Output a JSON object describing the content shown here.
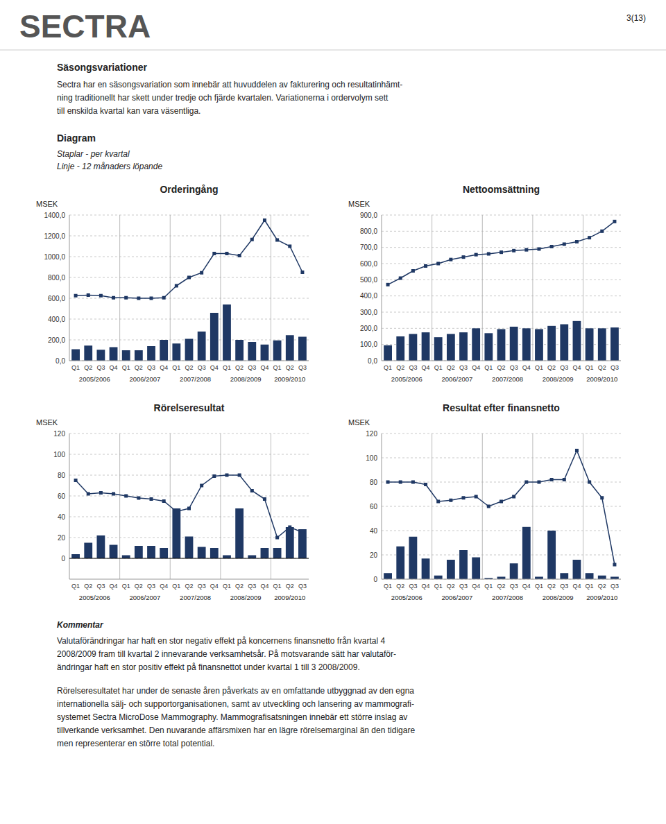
{
  "logo_text": "SECTRA",
  "page_header": "3(13)",
  "heading": "Säsongsvariationer",
  "intro": [
    "Sectra har en säsongsvariation som innebär att huvuddelen av fakturering och resultatinhämt-",
    "ning traditionellt har skett under tredje och fjärde kvartalen. Variationerna i ordervolym sett",
    "till enskilda kvartal kan vara väsentliga."
  ],
  "diagram_label": "Diagram",
  "diagram_notes": [
    "Staplar - per kvartal",
    "Linje - 12 månaders löpande"
  ],
  "comment_title": "Kommentar",
  "comment_text": [
    "Valutaförändringar har haft en stor negativ effekt på koncernens finansnetto från kvartal 4",
    "2008/2009 fram till kvartal 2 innevarande verksamhetsår. På motsvarande sätt har valutaför-",
    "ändringar haft en stor positiv effekt på finansnettot under kvartal 1 till 3 2008/2009."
  ],
  "extra_text": [
    "Rörelseresultatet har under de senaste åren påverkats av en omfattande utbyggnad av den egna",
    "internationella sälj- och supportorganisationen, samt av utveckling och lansering av mammografi-",
    "systemet Sectra MicroDose Mammography. Mammografisatsningen innebär ett större inslag av",
    "tillverkande verksamhet. Den nuvarande affärsmixen har en lägre rörelsemarginal än den tidigare",
    "men representerar en större total potential."
  ],
  "chart_data": [
    {
      "type": "bar",
      "title": "Orderingång",
      "ylabel": "MSEK",
      "categories": [
        "Q1",
        "Q2",
        "Q3",
        "Q4",
        "Q1",
        "Q2",
        "Q3",
        "Q4",
        "Q1",
        "Q2",
        "Q3",
        "Q4",
        "Q1",
        "Q2",
        "Q3",
        "Q4",
        "Q1",
        "Q2",
        "Q3"
      ],
      "annotations": [
        "2005/2006",
        "2006/2007",
        "2007/2008",
        "2008/2009",
        "2009/2010"
      ],
      "series": [
        {
          "type": "bar",
          "color": "#1F3864",
          "values": [
            110,
            145,
            105,
            130,
            100,
            100,
            140,
            200,
            165,
            210,
            280,
            460,
            540,
            200,
            180,
            155,
            195,
            245,
            230
          ]
        },
        {
          "type": "line",
          "color": "#1F3864",
          "marker": "square",
          "values": [
            625,
            630,
            625,
            605,
            605,
            600,
            600,
            605,
            720,
            800,
            845,
            1030,
            1030,
            1010,
            1165,
            1350,
            1160,
            1100,
            850
          ]
        }
      ],
      "ylim": [
        0,
        1400
      ],
      "yticks": [
        {
          "value": 0,
          "label": "0,0"
        },
        {
          "value": 200,
          "label": "200,0"
        },
        {
          "value": 400,
          "label": "400,0"
        },
        {
          "value": 600,
          "label": "600,0"
        },
        {
          "value": 800,
          "label": "800,0"
        },
        {
          "value": 1000,
          "label": "1000,0"
        },
        {
          "value": 1200,
          "label": "1200,0"
        },
        {
          "value": 1400,
          "label": "1400,0"
        }
      ],
      "grid": true
    },
    {
      "type": "bar",
      "title": "Nettoomsättning",
      "ylabel": "MSEK",
      "categories": [
        "Q1",
        "Q2",
        "Q3",
        "Q4",
        "Q1",
        "Q2",
        "Q3",
        "Q4",
        "Q1",
        "Q2",
        "Q3",
        "Q4",
        "Q1",
        "Q2",
        "Q3",
        "Q4",
        "Q1",
        "Q2",
        "Q3"
      ],
      "annotations": [
        "2005/2006",
        "2006/2007",
        "2007/2008",
        "2008/2009",
        "2009/2010"
      ],
      "series": [
        {
          "type": "bar",
          "color": "#1F3864",
          "values": [
            95,
            150,
            165,
            175,
            145,
            165,
            175,
            200,
            170,
            195,
            210,
            200,
            195,
            215,
            225,
            245,
            200,
            200,
            205
          ]
        },
        {
          "type": "line",
          "color": "#1F3864",
          "marker": "square",
          "values": [
            470,
            510,
            555,
            585,
            600,
            625,
            640,
            655,
            660,
            670,
            680,
            685,
            690,
            705,
            720,
            735,
            760,
            800,
            860
          ]
        }
      ],
      "ylim": [
        0,
        900
      ],
      "yticks": [
        {
          "value": 0,
          "label": "0,0"
        },
        {
          "value": 100,
          "label": "100,0"
        },
        {
          "value": 200,
          "label": "200,0"
        },
        {
          "value": 300,
          "label": "300,0"
        },
        {
          "value": 400,
          "label": "400,0"
        },
        {
          "value": 500,
          "label": "500,0"
        },
        {
          "value": 600,
          "label": "600,0"
        },
        {
          "value": 700,
          "label": "700,0"
        },
        {
          "value": 800,
          "label": "800,0"
        },
        {
          "value": 900,
          "label": "900,0"
        }
      ],
      "grid": true
    },
    {
      "type": "bar",
      "title": "Rörelseresultat",
      "ylabel": "MSEK",
      "categories": [
        "Q1",
        "Q2",
        "Q3",
        "Q4",
        "Q1",
        "Q2",
        "Q3",
        "Q4",
        "Q1",
        "Q2",
        "Q3",
        "Q4",
        "Q1",
        "Q2",
        "Q3",
        "Q4",
        "Q1",
        "Q2",
        "Q3"
      ],
      "annotations": [
        "2005/2006",
        "2006/2007",
        "2007/2008",
        "2008/2009",
        "2009/2010"
      ],
      "series": [
        {
          "type": "bar",
          "color": "#1F3864",
          "values": [
            4,
            15,
            22,
            13,
            3,
            12,
            12,
            10,
            48,
            21,
            11,
            10,
            3,
            48,
            3,
            10,
            10,
            30,
            28
          ]
        },
        {
          "type": "line",
          "color": "#1F3864",
          "marker": "square",
          "values": [
            75,
            62,
            63,
            62,
            60,
            58,
            57,
            55,
            45,
            48,
            70,
            79,
            80,
            80,
            65,
            57,
            20,
            30,
            25
          ]
        }
      ],
      "ylim": [
        -20,
        120
      ],
      "yticks": [
        0,
        20,
        40,
        60,
        80,
        100,
        120
      ],
      "grid": true
    },
    {
      "type": "bar",
      "title": "Resultat efter finansnetto",
      "ylabel": "MSEK",
      "categories": [
        "Q1",
        "Q2",
        "Q3",
        "Q4",
        "Q1",
        "Q2",
        "Q3",
        "Q4",
        "Q1",
        "Q2",
        "Q3",
        "Q4",
        "Q1",
        "Q2",
        "Q3",
        "Q4",
        "Q1",
        "Q2",
        "Q3"
      ],
      "annotations": [
        "2005/2006",
        "2006/2007",
        "2007/2008",
        "2008/2009",
        "2009/2010"
      ],
      "series": [
        {
          "type": "bar",
          "color": "#1F3864",
          "values": [
            5,
            27,
            35,
            17,
            3,
            16,
            24,
            18,
            1,
            2,
            13,
            43,
            2,
            40,
            5,
            16,
            5,
            3,
            2
          ]
        },
        {
          "type": "line",
          "color": "#1F3864",
          "marker": "square",
          "values": [
            80,
            80,
            80,
            78,
            64,
            65,
            67,
            68,
            60,
            64,
            68,
            80,
            80,
            82,
            82,
            106,
            80,
            67,
            12
          ]
        }
      ],
      "ylim": [
        0,
        120
      ],
      "yticks": [
        0,
        20,
        40,
        60,
        80,
        100,
        120
      ],
      "grid": true
    }
  ]
}
